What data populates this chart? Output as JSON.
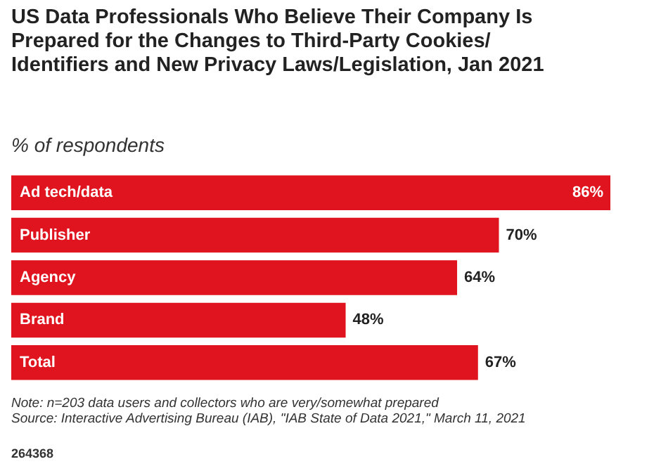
{
  "chart_data": {
    "type": "bar",
    "orientation": "horizontal",
    "title": "US Data Professionals Who Believe Their Company Is Prepared for the Changes to Third-Party Cookies/Identifiers and New Privacy Laws/Legislation, Jan 2021",
    "subtitle": "% of respondents",
    "categories": [
      "Ad tech/data",
      "Publisher",
      "Agency",
      "Brand",
      "Total"
    ],
    "values": [
      86,
      70,
      64,
      48,
      67
    ],
    "value_labels": [
      "86%",
      "70%",
      "64%",
      "48%",
      "67%"
    ],
    "color": "#e0141e",
    "annotations": [
      "Note: n=203 data users and collectors who are very/somewhat prepared",
      "Source: Interactive Advertising Bureau (IAB), \"IAB State of Data 2021,\" March 11, 2021",
      "264368"
    ]
  }
}
